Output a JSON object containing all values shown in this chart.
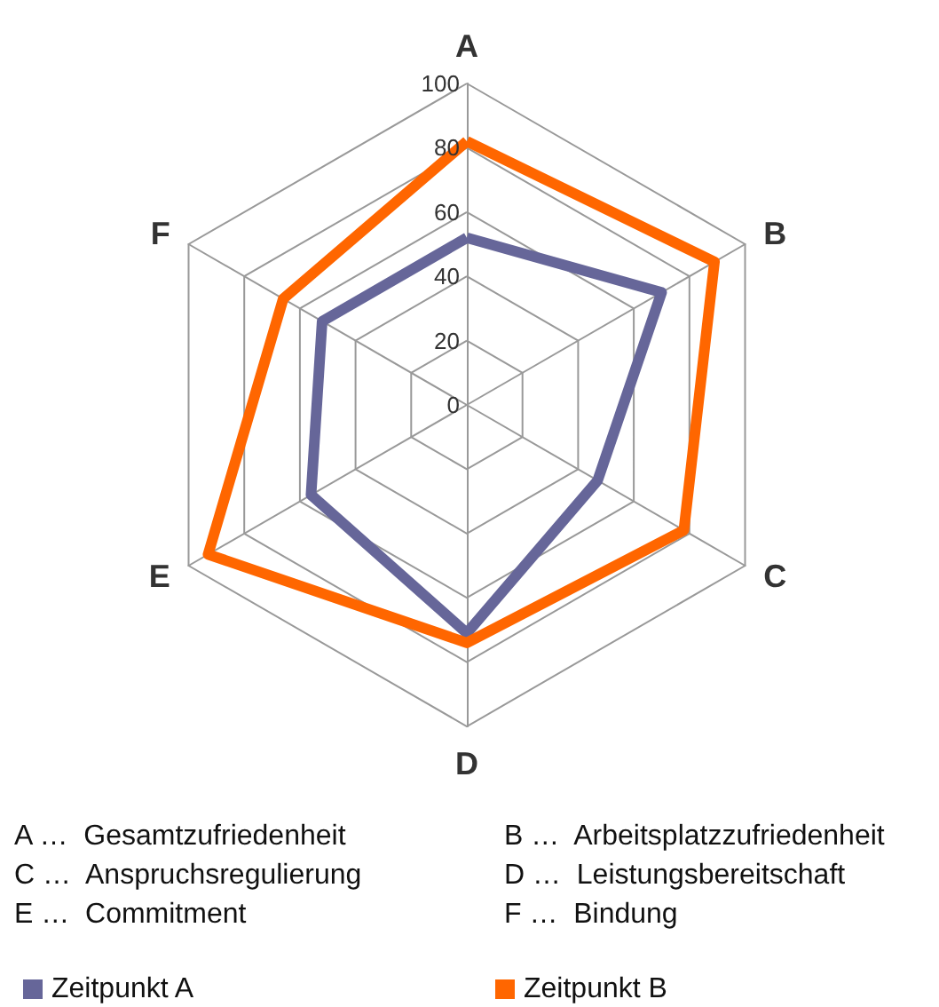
{
  "chart_data": {
    "type": "radar",
    "categories": [
      "A",
      "B",
      "C",
      "D",
      "E",
      "F"
    ],
    "series": [
      {
        "name": "Zeitpunkt A",
        "color": "#666699",
        "values": [
          52,
          70,
          47,
          71,
          56,
          52
        ]
      },
      {
        "name": "Zeitpunkt B",
        "color": "#ff6600",
        "values": [
          82,
          89,
          78,
          74,
          93,
          66
        ]
      }
    ],
    "ylim": [
      0,
      100
    ],
    "yticks": [
      0,
      20,
      40,
      60,
      80,
      100
    ],
    "legend": "bottom left",
    "marker": "none",
    "annotations": [
      "A …  Gesamtzufriedenheit",
      "B …  Arbeitsplatzzufriedenheit",
      "C …  Anspruchsregulierung",
      "D …  Leistungsbereitschaft",
      "E …  Commitment",
      "F …  Bindung"
    ]
  }
}
